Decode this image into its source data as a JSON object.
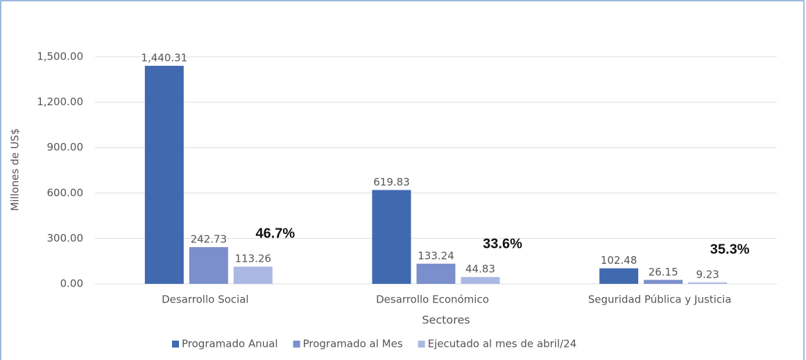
{
  "chart_data": {
    "type": "bar",
    "y_label": "Millones de US$",
    "x_label": "Sectores",
    "categories": [
      "Desarrollo Social",
      "Desarrollo Económico",
      "Seguridad  Pública y Justicia"
    ],
    "series": [
      {
        "name": "Programado Anual",
        "color": "#4169b0",
        "values": [
          1440.31,
          619.83,
          102.48
        ],
        "value_labels": [
          "1,440.31",
          "619.83",
          "102.48"
        ]
      },
      {
        "name": "Programado al Mes",
        "color": "#7b8fcc",
        "values": [
          242.73,
          133.24,
          26.15
        ],
        "value_labels": [
          "242.73",
          "133.24",
          "26.15"
        ]
      },
      {
        "name": "Ejecutado al mes de abril/24",
        "color": "#aab8e3",
        "values": [
          113.26,
          44.83,
          9.23
        ],
        "value_labels": [
          "113.26",
          "44.83",
          "9.23"
        ]
      }
    ],
    "annotations": [
      "46.7%",
      "33.6%",
      "35.3%"
    ],
    "ylim": [
      0,
      1500
    ],
    "yticks": [
      {
        "value": 0,
        "label": "0.00"
      },
      {
        "value": 300,
        "label": "300.00"
      },
      {
        "value": 600,
        "label": "600.00"
      },
      {
        "value": 900,
        "label": "900.00"
      },
      {
        "value": 1200,
        "label": "1,200.00"
      },
      {
        "value": 1500,
        "label": "1,500.00"
      }
    ],
    "grid": true,
    "legend": "bottom"
  }
}
